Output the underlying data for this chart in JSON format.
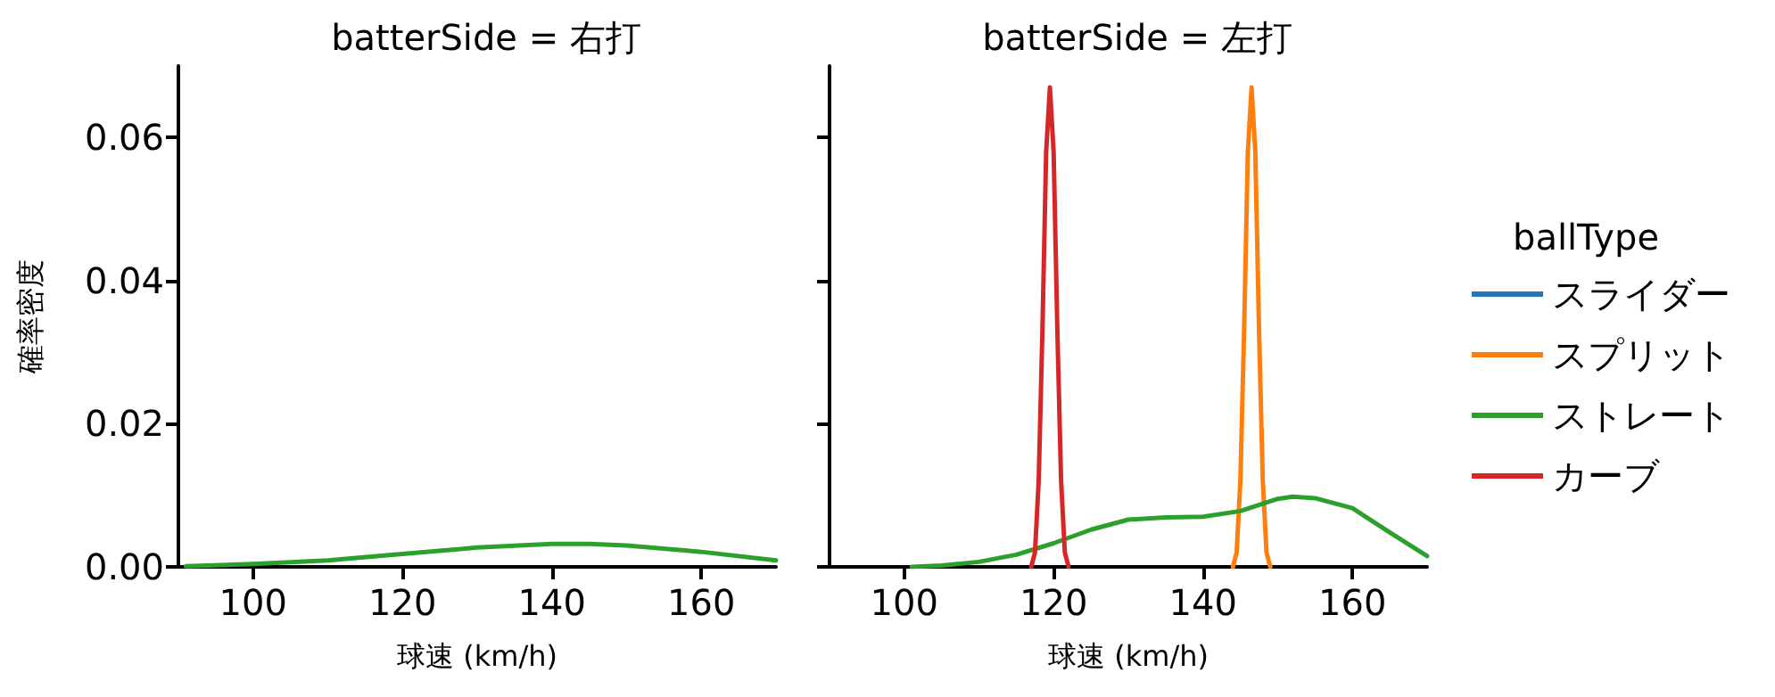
{
  "chart_data": [
    {
      "type": "line",
      "title": "batterSide = 右打",
      "xlabel": "球速 (km/h)",
      "ylabel": "確率密度",
      "xlim": [
        90,
        170
      ],
      "xticks": [
        100,
        120,
        140,
        160
      ],
      "ylim": [
        0,
        0.07
      ],
      "yticks": [
        {
          "value": 0,
          "label": "0.00"
        },
        0.02,
        0.04,
        0.06
      ],
      "grid": false,
      "legend": false,
      "marker": "none",
      "line_style": "solid",
      "series": [
        {
          "color": "#2ca02c",
          "x": [
            91,
            100,
            110,
            120,
            130,
            140,
            145,
            150,
            160,
            170
          ],
          "values": [
            0.0001,
            0.0004,
            0.0009,
            0.0018,
            0.0027,
            0.0032,
            0.0032,
            0.003,
            0.0021,
            0.0009
          ]
        }
      ]
    },
    {
      "type": "line",
      "title": "batterSide = 左打",
      "xlabel": "球速 (km/h)",
      "xlim": [
        90,
        170
      ],
      "xticks": [
        100,
        120,
        140,
        160
      ],
      "ylim": [
        0,
        0.07
      ],
      "yticks": [
        0,
        0.02,
        0.04,
        0.06
      ],
      "tick_labels": "x",
      "grid": false,
      "legend": "right",
      "legend_title": "ballType",
      "marker": "none",
      "line_style": "solid",
      "series": [
        {
          "name": "スライダー",
          "color": "#1f77b4"
        },
        {
          "name": "スプリット",
          "color": "#ff7f0e",
          "x": [
            144,
            144.5,
            145,
            145.5,
            146,
            146.5,
            147,
            147.5,
            148,
            148.5,
            149
          ],
          "values": [
            0,
            0.002,
            0.012,
            0.033,
            0.058,
            0.067,
            0.058,
            0.033,
            0.012,
            0.002,
            0
          ]
        },
        {
          "name": "ストレート",
          "color": "#2ca02c",
          "x": [
            101,
            105,
            110,
            115,
            120,
            125,
            130,
            135,
            140,
            145,
            150,
            152,
            155,
            160,
            165,
            170
          ],
          "values": [
            0,
            0.0002,
            0.0007,
            0.0017,
            0.0033,
            0.0052,
            0.0066,
            0.0069,
            0.007,
            0.0078,
            0.0095,
            0.0098,
            0.0096,
            0.0082,
            0.0048,
            0.0015
          ]
        },
        {
          "name": "カーブ",
          "color": "#d62728",
          "x": [
            117,
            117.5,
            118,
            118.5,
            119,
            119.5,
            120,
            120.5,
            121,
            121.5,
            122
          ],
          "values": [
            0,
            0.002,
            0.012,
            0.033,
            0.058,
            0.067,
            0.058,
            0.033,
            0.012,
            0.002,
            0
          ]
        }
      ]
    }
  ]
}
